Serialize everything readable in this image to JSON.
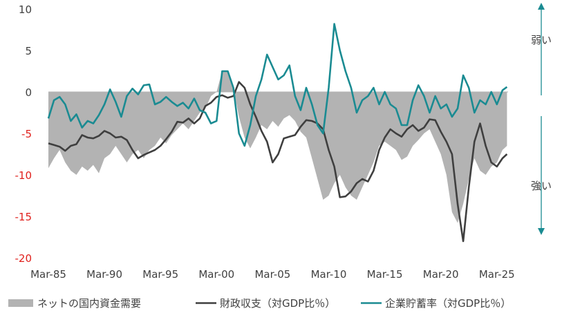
{
  "chart_data": {
    "type": "line",
    "title": "",
    "xlabel": "",
    "ylabel": "",
    "ylim": [
      -20,
      10
    ],
    "x_range": [
      "1985-03",
      "2025-12"
    ],
    "grid": false,
    "legend_placement": "bottom",
    "x_tick_labels": [
      "Mar-85",
      "Mar-90",
      "Mar-95",
      "Mar-00",
      "Mar-05",
      "Mar-10",
      "Mar-15",
      "Mar-20",
      "Mar-25"
    ],
    "y_tick_labels": [
      "10",
      "5",
      "0",
      "-5",
      "-10",
      "-15",
      "-20"
    ],
    "side_labels": {
      "top": "弱い",
      "bottom": "強い"
    },
    "colors": {
      "area": "#b3b3b3",
      "fiscal": "#3f3f3f",
      "corporate": "#1a8b92",
      "negative_tick": "#e0201c",
      "arrow": "#1a8b92"
    },
    "series": [
      {
        "name": "ネットの国内資金需要",
        "kind": "area",
        "points": [
          [
            1985.0,
            -9.2
          ],
          [
            1985.5,
            -8.0
          ],
          [
            1986.0,
            -7.0
          ],
          [
            1986.5,
            -8.5
          ],
          [
            1987.0,
            -9.5
          ],
          [
            1987.5,
            -10.0
          ],
          [
            1988.0,
            -9.0
          ],
          [
            1988.5,
            -9.5
          ],
          [
            1989.0,
            -8.8
          ],
          [
            1989.5,
            -9.8
          ],
          [
            1990.0,
            -8.0
          ],
          [
            1990.5,
            -7.5
          ],
          [
            1991.0,
            -6.5
          ],
          [
            1991.5,
            -7.5
          ],
          [
            1992.0,
            -8.5
          ],
          [
            1992.5,
            -7.5
          ],
          [
            1993.0,
            -7.0
          ],
          [
            1993.5,
            -8.0
          ],
          [
            1994.0,
            -7.0
          ],
          [
            1994.5,
            -6.5
          ],
          [
            1995.0,
            -5.5
          ],
          [
            1995.5,
            -6.2
          ],
          [
            1996.0,
            -5.2
          ],
          [
            1996.5,
            -4.5
          ],
          [
            1997.0,
            -3.8
          ],
          [
            1997.5,
            -4.5
          ],
          [
            1998.0,
            -3.5
          ],
          [
            1998.5,
            -2.5
          ],
          [
            1999.0,
            -2.0
          ],
          [
            1999.5,
            -0.5
          ],
          [
            2000.0,
            0.0
          ],
          [
            2000.5,
            2.5
          ],
          [
            2001.0,
            2.5
          ],
          [
            2001.5,
            0.5
          ],
          [
            2002.0,
            -3.0
          ],
          [
            2002.5,
            -5.5
          ],
          [
            2003.0,
            -6.8
          ],
          [
            2003.5,
            -5.5
          ],
          [
            2004.0,
            -4.0
          ],
          [
            2004.5,
            -4.5
          ],
          [
            2005.0,
            -3.5
          ],
          [
            2005.5,
            -4.2
          ],
          [
            2006.0,
            -3.2
          ],
          [
            2006.5,
            -2.8
          ],
          [
            2007.0,
            -3.5
          ],
          [
            2007.5,
            -4.8
          ],
          [
            2008.0,
            -5.5
          ],
          [
            2008.5,
            -8.0
          ],
          [
            2009.0,
            -10.5
          ],
          [
            2009.5,
            -13.0
          ],
          [
            2010.0,
            -12.5
          ],
          [
            2010.5,
            -11.0
          ],
          [
            2011.0,
            -10.0
          ],
          [
            2011.5,
            -11.5
          ],
          [
            2012.0,
            -12.5
          ],
          [
            2012.5,
            -13.0
          ],
          [
            2013.0,
            -11.5
          ],
          [
            2013.5,
            -10.0
          ],
          [
            2014.0,
            -8.5
          ],
          [
            2014.5,
            -6.5
          ],
          [
            2015.0,
            -6.0
          ],
          [
            2015.5,
            -6.5
          ],
          [
            2016.0,
            -7.0
          ],
          [
            2016.5,
            -8.2
          ],
          [
            2017.0,
            -7.8
          ],
          [
            2017.5,
            -6.5
          ],
          [
            2018.0,
            -5.8
          ],
          [
            2018.5,
            -5.0
          ],
          [
            2019.0,
            -4.5
          ],
          [
            2019.5,
            -6.0
          ],
          [
            2020.0,
            -7.5
          ],
          [
            2020.5,
            -10.0
          ],
          [
            2021.0,
            -14.5
          ],
          [
            2021.5,
            -15.8
          ],
          [
            2022.0,
            -13.5
          ],
          [
            2022.5,
            -10.5
          ],
          [
            2023.0,
            -8.0
          ],
          [
            2023.5,
            -9.5
          ],
          [
            2024.0,
            -10.0
          ],
          [
            2024.5,
            -9.0
          ],
          [
            2025.0,
            -8.5
          ],
          [
            2025.5,
            -7.0
          ],
          [
            2025.9,
            -6.5
          ]
        ]
      },
      {
        "name": "財政収支（対GDP比％）",
        "kind": "line",
        "points": [
          [
            1985.0,
            -6.2
          ],
          [
            1985.5,
            -6.4
          ],
          [
            1986.0,
            -6.6
          ],
          [
            1986.5,
            -7.1
          ],
          [
            1987.0,
            -6.5
          ],
          [
            1987.5,
            -6.3
          ],
          [
            1988.0,
            -5.2
          ],
          [
            1988.5,
            -5.5
          ],
          [
            1989.0,
            -5.6
          ],
          [
            1989.5,
            -5.3
          ],
          [
            1990.0,
            -4.7
          ],
          [
            1990.5,
            -5.0
          ],
          [
            1991.0,
            -5.5
          ],
          [
            1991.5,
            -5.4
          ],
          [
            1992.0,
            -5.8
          ],
          [
            1992.5,
            -7.0
          ],
          [
            1993.0,
            -8.0
          ],
          [
            1993.5,
            -7.6
          ],
          [
            1994.0,
            -7.3
          ],
          [
            1994.5,
            -7.0
          ],
          [
            1995.0,
            -6.5
          ],
          [
            1995.5,
            -5.7
          ],
          [
            1996.0,
            -4.8
          ],
          [
            1996.5,
            -3.6
          ],
          [
            1997.0,
            -3.7
          ],
          [
            1997.5,
            -3.2
          ],
          [
            1998.0,
            -3.8
          ],
          [
            1998.5,
            -3.2
          ],
          [
            1999.0,
            -1.7
          ],
          [
            1999.5,
            -1.3
          ],
          [
            2000.0,
            -0.6
          ],
          [
            2000.5,
            -0.4
          ],
          [
            2001.0,
            -0.7
          ],
          [
            2001.5,
            -0.5
          ],
          [
            2002.0,
            1.2
          ],
          [
            2002.5,
            0.5
          ],
          [
            2003.0,
            -1.5
          ],
          [
            2003.5,
            -3.0
          ],
          [
            2004.0,
            -4.7
          ],
          [
            2004.5,
            -6.0
          ],
          [
            2005.0,
            -8.5
          ],
          [
            2005.5,
            -7.5
          ],
          [
            2006.0,
            -5.6
          ],
          [
            2006.5,
            -5.4
          ],
          [
            2007.0,
            -5.2
          ],
          [
            2007.5,
            -4.2
          ],
          [
            2008.0,
            -3.4
          ],
          [
            2008.5,
            -3.5
          ],
          [
            2009.0,
            -3.8
          ],
          [
            2009.5,
            -4.5
          ],
          [
            2010.0,
            -7.0
          ],
          [
            2010.5,
            -9.0
          ],
          [
            2011.0,
            -12.7
          ],
          [
            2011.5,
            -12.6
          ],
          [
            2012.0,
            -12.0
          ],
          [
            2012.5,
            -11.0
          ],
          [
            2013.0,
            -10.5
          ],
          [
            2013.5,
            -10.8
          ],
          [
            2014.0,
            -9.5
          ],
          [
            2014.5,
            -7.0
          ],
          [
            2015.0,
            -5.5
          ],
          [
            2015.5,
            -4.5
          ],
          [
            2016.0,
            -5.0
          ],
          [
            2016.5,
            -5.4
          ],
          [
            2017.0,
            -4.5
          ],
          [
            2017.5,
            -4.0
          ],
          [
            2018.0,
            -4.7
          ],
          [
            2018.5,
            -4.3
          ],
          [
            2019.0,
            -3.3
          ],
          [
            2019.5,
            -3.4
          ],
          [
            2020.0,
            -4.8
          ],
          [
            2020.5,
            -6.0
          ],
          [
            2021.0,
            -7.5
          ],
          [
            2021.5,
            -13.5
          ],
          [
            2022.0,
            -18.0
          ],
          [
            2022.5,
            -11.5
          ],
          [
            2023.0,
            -6.0
          ],
          [
            2023.5,
            -3.8
          ],
          [
            2024.0,
            -6.5
          ],
          [
            2024.5,
            -8.5
          ],
          [
            2025.0,
            -9.0
          ],
          [
            2025.5,
            -8.0
          ],
          [
            2025.9,
            -7.5
          ]
        ]
      },
      {
        "name": "企業貯蓄率（対GDP比％）",
        "kind": "line",
        "points": [
          [
            1985.0,
            -3.2
          ],
          [
            1985.5,
            -1.0
          ],
          [
            1986.0,
            -0.6
          ],
          [
            1986.5,
            -1.5
          ],
          [
            1987.0,
            -3.5
          ],
          [
            1987.5,
            -2.7
          ],
          [
            1988.0,
            -4.3
          ],
          [
            1988.5,
            -3.5
          ],
          [
            1989.0,
            -3.8
          ],
          [
            1989.5,
            -2.8
          ],
          [
            1990.0,
            -1.5
          ],
          [
            1990.5,
            0.3
          ],
          [
            1991.0,
            -1.2
          ],
          [
            1991.5,
            -3.0
          ],
          [
            1992.0,
            -0.5
          ],
          [
            1992.5,
            0.4
          ],
          [
            1993.0,
            -0.3
          ],
          [
            1993.5,
            0.8
          ],
          [
            1994.0,
            0.9
          ],
          [
            1994.5,
            -1.5
          ],
          [
            1995.0,
            -1.2
          ],
          [
            1995.5,
            -0.6
          ],
          [
            1996.0,
            -1.2
          ],
          [
            1996.5,
            -1.7
          ],
          [
            1997.0,
            -1.3
          ],
          [
            1997.5,
            -2.0
          ],
          [
            1998.0,
            -0.8
          ],
          [
            1998.5,
            -2.2
          ],
          [
            1999.0,
            -2.5
          ],
          [
            1999.5,
            -3.8
          ],
          [
            2000.0,
            -3.5
          ],
          [
            2000.5,
            2.5
          ],
          [
            2001.0,
            2.5
          ],
          [
            2001.5,
            0.5
          ],
          [
            2002.0,
            -5.0
          ],
          [
            2002.5,
            -6.5
          ],
          [
            2003.0,
            -4.0
          ],
          [
            2003.5,
            -0.5
          ],
          [
            2004.0,
            1.5
          ],
          [
            2004.5,
            4.5
          ],
          [
            2005.0,
            3.0
          ],
          [
            2005.5,
            1.5
          ],
          [
            2006.0,
            2.0
          ],
          [
            2006.5,
            3.2
          ],
          [
            2007.0,
            -0.5
          ],
          [
            2007.5,
            -2.2
          ],
          [
            2008.0,
            0.5
          ],
          [
            2008.5,
            -1.5
          ],
          [
            2009.0,
            -4.0
          ],
          [
            2009.5,
            -5.0
          ],
          [
            2010.0,
            0.5
          ],
          [
            2010.5,
            8.2
          ],
          [
            2011.0,
            5.0
          ],
          [
            2011.5,
            2.5
          ],
          [
            2012.0,
            0.5
          ],
          [
            2012.5,
            -2.5
          ],
          [
            2013.0,
            -1.0
          ],
          [
            2013.5,
            -0.5
          ],
          [
            2014.0,
            0.5
          ],
          [
            2014.5,
            -1.5
          ],
          [
            2015.0,
            0.0
          ],
          [
            2015.5,
            -1.5
          ],
          [
            2016.0,
            -2.0
          ],
          [
            2016.5,
            -4.0
          ],
          [
            2017.0,
            -4.0
          ],
          [
            2017.5,
            -1.0
          ],
          [
            2018.0,
            0.8
          ],
          [
            2018.5,
            -0.5
          ],
          [
            2019.0,
            -2.5
          ],
          [
            2019.5,
            -0.5
          ],
          [
            2020.0,
            -2.0
          ],
          [
            2020.5,
            -1.5
          ],
          [
            2021.0,
            -3.0
          ],
          [
            2021.5,
            -2.0
          ],
          [
            2022.0,
            2.0
          ],
          [
            2022.5,
            0.5
          ],
          [
            2023.0,
            -2.5
          ],
          [
            2023.5,
            -1.0
          ],
          [
            2024.0,
            -1.5
          ],
          [
            2024.5,
            0.0
          ],
          [
            2025.0,
            -1.5
          ],
          [
            2025.5,
            0.2
          ],
          [
            2025.9,
            0.6
          ]
        ]
      }
    ]
  }
}
